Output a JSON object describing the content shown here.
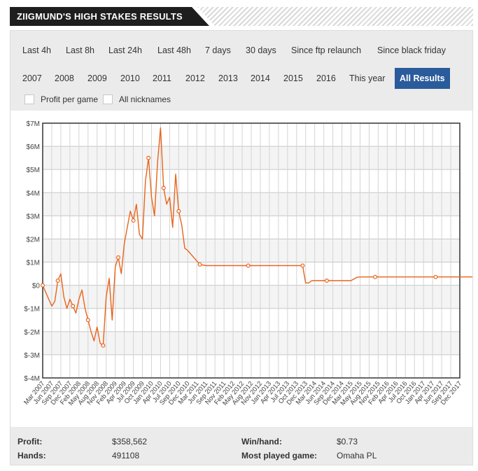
{
  "header": {
    "title": "ZIIGMUND'S HIGH STAKES RESULTS"
  },
  "filters": {
    "row1": [
      "Last 4h",
      "Last 8h",
      "Last 24h",
      "Last 48h",
      "7 days",
      "30 days",
      "Since ftp relaunch",
      "Since black friday"
    ],
    "row2": [
      "2007",
      "2008",
      "2009",
      "2010",
      "2011",
      "2012",
      "2013",
      "2014",
      "2015",
      "2016",
      "This year",
      "All Results"
    ],
    "active": "All Results",
    "checkboxes": [
      {
        "label": "Profit per game",
        "checked": false
      },
      {
        "label": "All nicknames",
        "checked": false
      }
    ]
  },
  "chart_data": {
    "type": "line",
    "title": "",
    "xlabel": "",
    "ylabel": "",
    "ylim": [
      -4000000,
      7000000
    ],
    "y_ticks": [
      "$7M",
      "$6M",
      "$5M",
      "$4M",
      "$3M",
      "$2M",
      "$1M",
      "$0",
      "$-1M",
      "$-2M",
      "$-3M",
      "$-4M"
    ],
    "x_ticks": [
      "Mar 2007",
      "Jun 2007",
      "Sep 2007",
      "Dec 2007",
      "Feb 2008",
      "May 2008",
      "Aug 2008",
      "Nov 2008",
      "Feb 2009",
      "Apr 2009",
      "Jul 2009",
      "Oct 2009",
      "Jan 2010",
      "Apr 2010",
      "Jul 2010",
      "Sep 2010",
      "Dec 2010",
      "Mar 2011",
      "Jun 2011",
      "Sep 2011",
      "Nov 2011",
      "Feb 2012",
      "May 2012",
      "Aug 2012",
      "Nov 2012",
      "Jan 2013",
      "Apr 2013",
      "Jul 2013",
      "Oct 2013",
      "Dec 2013",
      "Mar 2014",
      "Jun 2014",
      "Sep 2014",
      "Dec 2014",
      "Mar 2015",
      "May 2015",
      "Aug 2015",
      "Nov 2015",
      "Feb 2016",
      "Apr 2016",
      "Jul 2016",
      "Oct 2016",
      "Jan 2017",
      "Apr 2017",
      "Jun 2017",
      "Sep 2017",
      "Dec 2017"
    ],
    "series": [
      {
        "color": "#e8641b",
        "points": [
          [
            0,
            0
          ],
          [
            0.5,
            -0.3
          ],
          [
            1,
            -0.6
          ],
          [
            1.5,
            -0.9
          ],
          [
            2,
            -0.7
          ],
          [
            2.5,
            0.2
          ],
          [
            3,
            0.5
          ],
          [
            3.5,
            -0.5
          ],
          [
            4,
            -1.0
          ],
          [
            4.5,
            -0.6
          ],
          [
            5,
            -0.9
          ],
          [
            5.5,
            -1.2
          ],
          [
            6,
            -0.6
          ],
          [
            6.5,
            -0.2
          ],
          [
            7,
            -1.0
          ],
          [
            7.5,
            -1.5
          ],
          [
            8,
            -2.0
          ],
          [
            8.5,
            -2.4
          ],
          [
            9,
            -1.8
          ],
          [
            9.5,
            -2.5
          ],
          [
            10,
            -2.6
          ],
          [
            10.5,
            -0.5
          ],
          [
            11,
            0.3
          ],
          [
            11.5,
            -1.5
          ],
          [
            12,
            0.8
          ],
          [
            12.5,
            1.2
          ],
          [
            13,
            0.5
          ],
          [
            13.5,
            1.8
          ],
          [
            14,
            2.5
          ],
          [
            14.5,
            3.2
          ],
          [
            15,
            2.8
          ],
          [
            15.5,
            3.5
          ],
          [
            16,
            2.2
          ],
          [
            16.5,
            2.0
          ],
          [
            17,
            4.5
          ],
          [
            17.5,
            5.5
          ],
          [
            18,
            3.8
          ],
          [
            18.5,
            3.0
          ],
          [
            19,
            5.3
          ],
          [
            19.5,
            6.8
          ],
          [
            20,
            4.2
          ],
          [
            20.5,
            3.5
          ],
          [
            21,
            3.8
          ],
          [
            21.5,
            2.5
          ],
          [
            22,
            4.8
          ],
          [
            22.5,
            3.2
          ],
          [
            23,
            2.6
          ],
          [
            23.5,
            1.6
          ],
          [
            24,
            1.5
          ],
          [
            25,
            1.2
          ],
          [
            26,
            0.9
          ],
          [
            27,
            0.85
          ],
          [
            28,
            0.85
          ],
          [
            30,
            0.85
          ],
          [
            32,
            0.85
          ],
          [
            34,
            0.85
          ],
          [
            36,
            0.85
          ],
          [
            38,
            0.85
          ],
          [
            40,
            0.85
          ],
          [
            42,
            0.85
          ],
          [
            43,
            0.85
          ],
          [
            43.5,
            0.1
          ],
          [
            44,
            0.1
          ],
          [
            44.5,
            0.2
          ],
          [
            45,
            0.2
          ],
          [
            47,
            0.2
          ],
          [
            49,
            0.2
          ],
          [
            51,
            0.2
          ],
          [
            52,
            0.35
          ],
          [
            53,
            0.36
          ],
          [
            55,
            0.36
          ],
          [
            57,
            0.36
          ],
          [
            59,
            0.36
          ],
          [
            61,
            0.36
          ],
          [
            63,
            0.36
          ],
          [
            65,
            0.36
          ],
          [
            67,
            0.36
          ],
          [
            69,
            0.36
          ],
          [
            71,
            0.36
          ],
          [
            73,
            0.36
          ],
          [
            75,
            0.36
          ]
        ]
      }
    ],
    "grid": true,
    "legend": "none"
  },
  "stats": {
    "profit_label": "Profit:",
    "profit_value": "$358,562",
    "hands_label": "Hands:",
    "hands_value": "491108",
    "winhand_label": "Win/hand:",
    "winhand_value": "$0.73",
    "game_label": "Most played game:",
    "game_value": "Omaha PL"
  }
}
